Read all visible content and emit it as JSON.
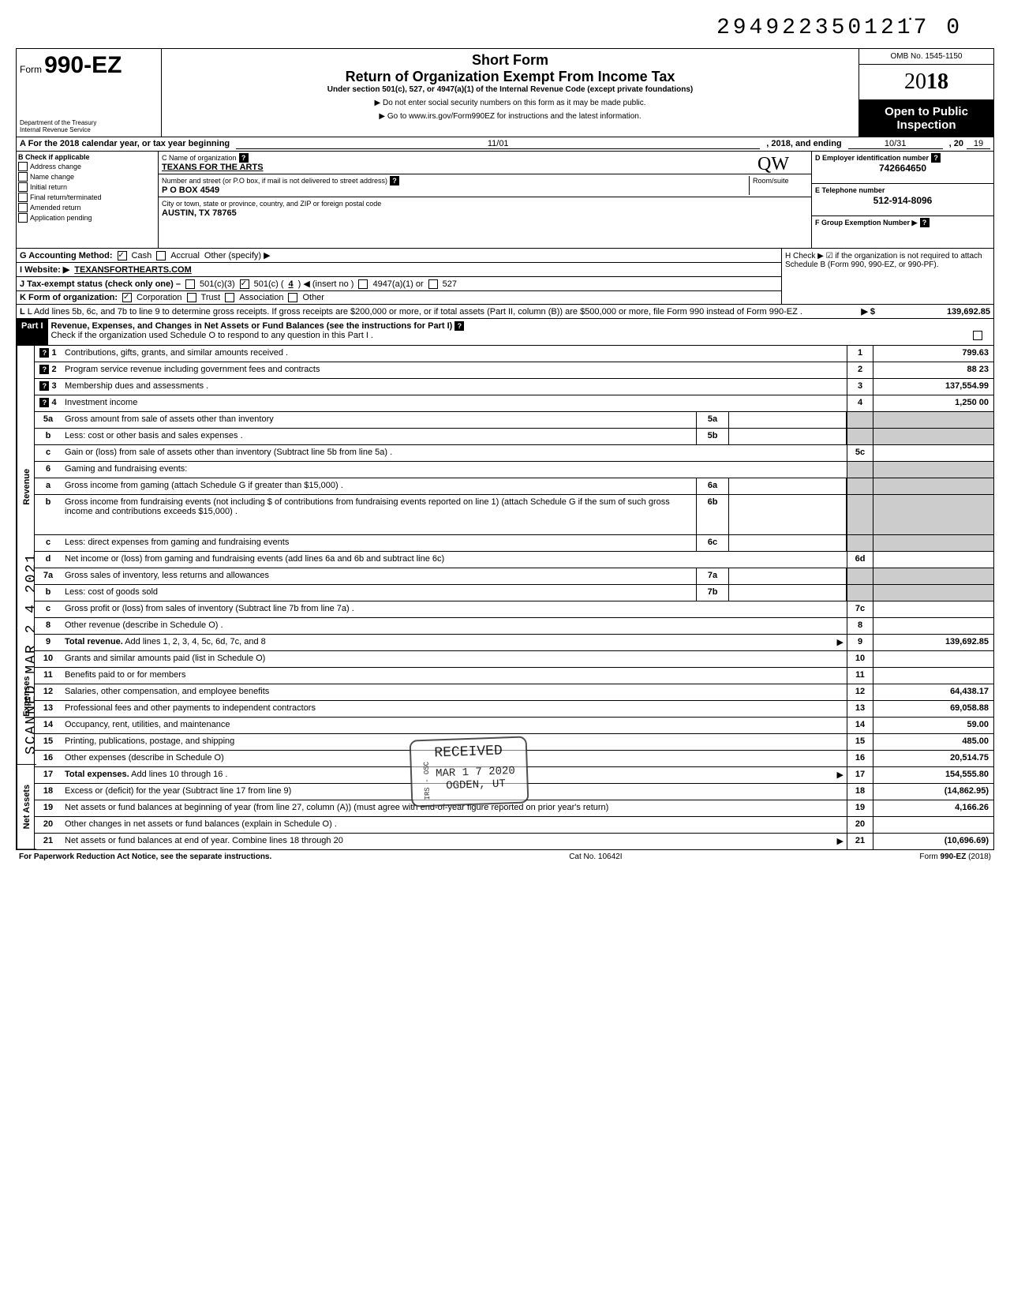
{
  "doc_number": "294922350121̇7  0",
  "omb": "OMB No. 1545-1150",
  "tax_year": "2018",
  "form": {
    "prefix": "Form",
    "number": "990-EZ",
    "dept": "Department of the Treasury\nInternal Revenue Service"
  },
  "titles": {
    "short": "Short Form",
    "main": "Return of Organization Exempt From Income Tax",
    "sub": "Under section 501(c), 527, or 4947(a)(1) of the Internal Revenue Code (except private foundations)",
    "warn1": "▶ Do not enter social security numbers on this form as it may be made public.",
    "warn2": "▶ Go to www.irs.gov/Form990EZ for instructions and the latest information.",
    "open": "Open to Public Inspection"
  },
  "period": {
    "label": "A For the 2018 calendar year, or tax year beginning",
    "begin": "11/01",
    "mid": ", 2018, and ending",
    "end": "10/31",
    "suffix": ", 20",
    "yy": "19"
  },
  "section_b": {
    "label": "B Check if applicable",
    "items": [
      "Address change",
      "Name change",
      "Initial return",
      "Final return/terminated",
      "Amended return",
      "Application pending"
    ]
  },
  "section_c": {
    "name_label": "C Name of organization",
    "name": "TEXANS FOR THE ARTS",
    "addr_label": "Number and street (or P.O  box, if mail is not delivered to street address)",
    "room_label": "Room/suite",
    "addr": "P O BOX 4549",
    "city_label": "City or town, state or province, country, and ZIP or foreign postal code",
    "city": "AUSTIN, TX 78765"
  },
  "section_d": {
    "label": "D Employer identification number",
    "val": "742664650"
  },
  "section_e": {
    "label": "E Telephone number",
    "val": "512-914-8096"
  },
  "section_f": {
    "label": "F Group Exemption Number ▶"
  },
  "line_g": {
    "label": "G Accounting Method:",
    "cash": "Cash",
    "accrual": "Accrual",
    "other": "Other (specify) ▶"
  },
  "line_h": "H Check ▶ ☑ if the organization is not required to attach Schedule B (Form 990, 990-EZ, or 990-PF).",
  "line_i": {
    "label": "I  Website: ▶",
    "val": "TEXANSFORTHEARTS.COM"
  },
  "line_j": {
    "label": "J Tax-exempt status (check only one) –",
    "c3": "501(c)(3)",
    "c": "501(c) (",
    "c_num": "4",
    "c_suffix": ") ◀ (insert no )",
    "a1": "4947(a)(1) or",
    "527": "527"
  },
  "line_k": {
    "label": "K Form of organization:",
    "corp": "Corporation",
    "trust": "Trust",
    "assoc": "Association",
    "other": "Other"
  },
  "line_l": {
    "text": "L Add lines 5b, 6c, and 7b to line 9 to determine gross receipts. If gross receipts are $200,000 or more, or if total assets (Part II, column (B)) are $500,000 or more, file Form 990 instead of Form 990-EZ .",
    "arrow": "▶  $",
    "val": "139,692.85"
  },
  "part1": {
    "header": "Part I",
    "title": "Revenue, Expenses, and Changes in Net Assets or Fund Balances (see the instructions for Part I)",
    "check": "Check if the organization used Schedule O to respond to any question in this Part I ."
  },
  "sections": {
    "revenue": "Revenue",
    "expenses": "Expenses",
    "netassets": "Net Assets"
  },
  "lines": [
    {
      "n": "1",
      "desc": "Contributions, gifts, grants, and similar amounts received .",
      "box": "1",
      "val": "799.63",
      "help": true
    },
    {
      "n": "2",
      "desc": "Program service revenue including government fees and contracts",
      "box": "2",
      "val": "88 23",
      "help": true
    },
    {
      "n": "3",
      "desc": "Membership dues and assessments .",
      "box": "3",
      "val": "137,554.99",
      "help": true
    },
    {
      "n": "4",
      "desc": "Investment income",
      "box": "4",
      "val": "1,250 00",
      "help": true
    },
    {
      "n": "5a",
      "desc": "Gross amount from sale of assets other than inventory",
      "mid": "5a",
      "shadeEnd": true
    },
    {
      "n": "b",
      "desc": "Less: cost or other basis and sales expenses .",
      "mid": "5b",
      "shadeEnd": true
    },
    {
      "n": "c",
      "desc": "Gain or (loss) from sale of assets other than inventory (Subtract line 5b from line 5a) .",
      "box": "5c",
      "val": ""
    },
    {
      "n": "6",
      "desc": "Gaming and fundraising events:",
      "shadeEnd": true,
      "noBox": true
    },
    {
      "n": "a",
      "desc": "Gross income from gaming (attach Schedule G if greater than $15,000) .",
      "mid": "6a",
      "shadeEnd": true
    },
    {
      "n": "b",
      "desc": "Gross income from fundraising events (not including  $                       of contributions from fundraising events reported on line 1) (attach Schedule G if the sum of such gross income and contributions exceeds $15,000) .",
      "mid": "6b",
      "shadeEnd": true,
      "tall": true
    },
    {
      "n": "c",
      "desc": "Less: direct expenses from gaming and fundraising events",
      "mid": "6c",
      "shadeEnd": true
    },
    {
      "n": "d",
      "desc": "Net income or (loss) from gaming and fundraising events (add lines 6a and 6b and subtract line 6c)",
      "box": "6d",
      "val": ""
    },
    {
      "n": "7a",
      "desc": "Gross sales of inventory, less returns and allowances",
      "mid": "7a",
      "shadeEnd": true
    },
    {
      "n": "b",
      "desc": "Less: cost of goods sold",
      "mid": "7b",
      "shadeEnd": true
    },
    {
      "n": "c",
      "desc": "Gross profit or (loss) from sales of inventory (Subtract line 7b from line 7a) .",
      "box": "7c",
      "val": ""
    },
    {
      "n": "8",
      "desc": "Other revenue (describe in Schedule O) .",
      "box": "8",
      "val": ""
    },
    {
      "n": "9",
      "desc": "Total revenue. Add lines 1, 2, 3, 4, 5c, 6d, 7c, and 8",
      "box": "9",
      "val": "139,692.85",
      "bold": true,
      "arrow": true
    },
    {
      "n": "10",
      "desc": "Grants and similar amounts paid (list in Schedule O)",
      "box": "10",
      "val": ""
    },
    {
      "n": "11",
      "desc": "Benefits paid to or for members",
      "box": "11",
      "val": ""
    },
    {
      "n": "12",
      "desc": "Salaries, other compensation, and employee benefits",
      "box": "12",
      "val": "64,438.17"
    },
    {
      "n": "13",
      "desc": "Professional fees and other payments to independent contractors",
      "box": "13",
      "val": "69,058.88"
    },
    {
      "n": "14",
      "desc": "Occupancy, rent, utilities, and maintenance",
      "box": "14",
      "val": "59.00"
    },
    {
      "n": "15",
      "desc": "Printing, publications, postage, and shipping",
      "box": "15",
      "val": "485.00"
    },
    {
      "n": "16",
      "desc": "Other expenses (describe in Schedule O)",
      "box": "16",
      "val": "20,514.75"
    },
    {
      "n": "17",
      "desc": "Total expenses. Add lines 10 through 16 .",
      "box": "17",
      "val": "154,555.80",
      "bold": true,
      "arrow": true
    },
    {
      "n": "18",
      "desc": "Excess or (deficit) for the year (Subtract line 17 from line 9)",
      "box": "18",
      "val": "(14,862.95)"
    },
    {
      "n": "19",
      "desc": "Net assets or fund balances at beginning of year (from line 27, column (A)) (must agree with end-of-year figure reported on prior year's return)",
      "box": "19",
      "val": "4,166.26"
    },
    {
      "n": "20",
      "desc": "Other changes in net assets or fund balances (explain in Schedule O) .",
      "box": "20",
      "val": ""
    },
    {
      "n": "21",
      "desc": "Net assets or fund balances at end of year. Combine lines 18 through 20",
      "box": "21",
      "val": "(10,696.69)",
      "arrow": true
    }
  ],
  "footer": {
    "left": "For Paperwork Reduction Act Notice, see the separate instructions.",
    "mid": "Cat  No. 10642I",
    "right": "Form 990-EZ (2018)"
  },
  "scanned": "SCANNED MAR 2 4 2021",
  "stamp": {
    "l1": "RECEIVED",
    "l2": "MAR 1 7 2020",
    "l3": "OGDEN, UT",
    "side": "IRS - OSC"
  },
  "initials": "QW"
}
